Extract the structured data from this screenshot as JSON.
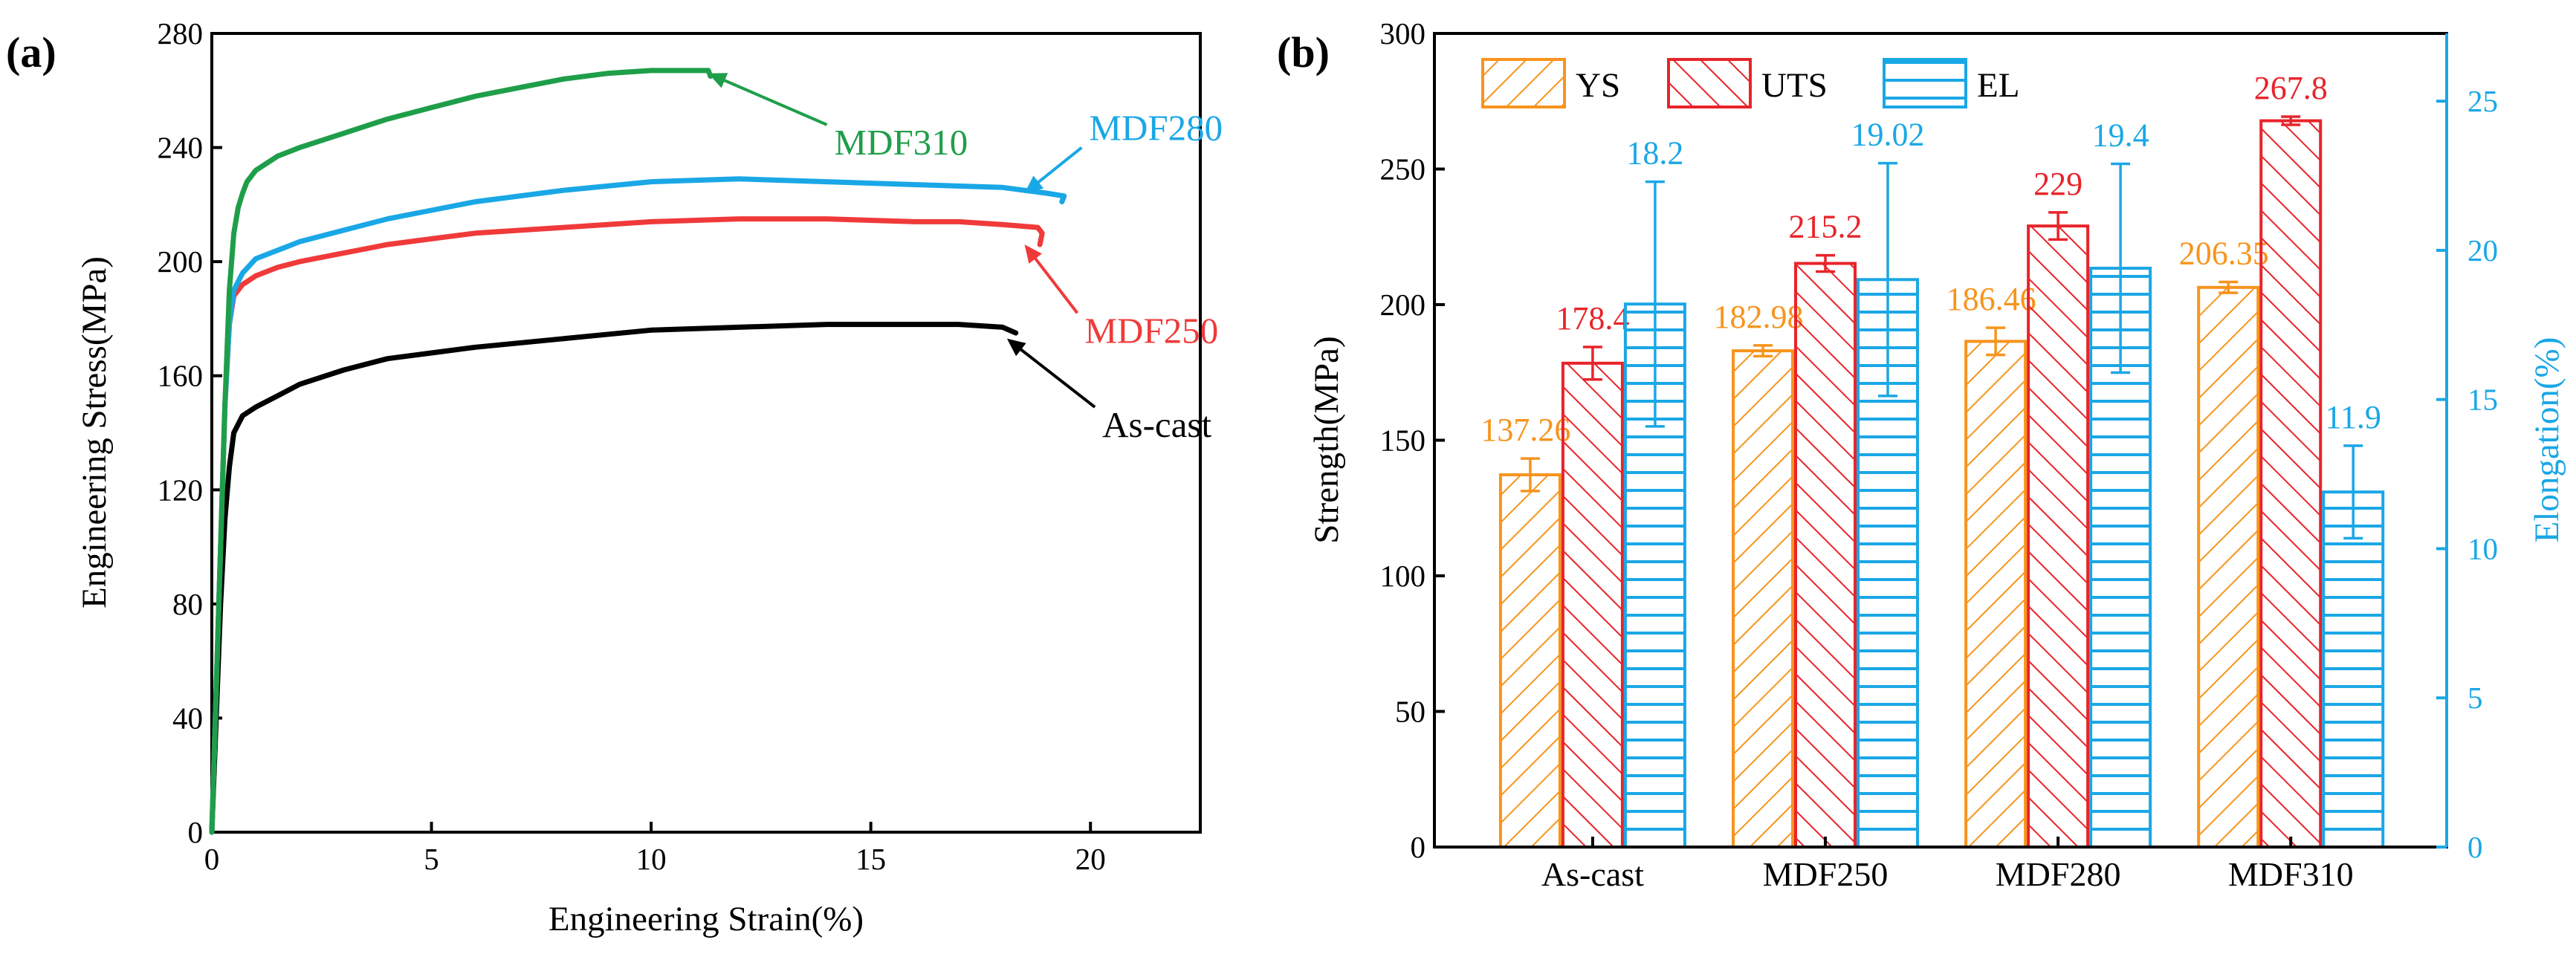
{
  "chart_data": [
    {
      "type": "line",
      "panel_label": "(a)",
      "xlabel": "Engineering Strain(%)",
      "ylabel": "Engineering Stress(MPa)",
      "xlim": [
        0,
        22.5
      ],
      "ylim": [
        0,
        280
      ],
      "xticks": [
        "0",
        "5",
        "10",
        "15",
        "20"
      ],
      "yticks": [
        "0",
        "40",
        "80",
        "120",
        "160",
        "200",
        "240",
        "280"
      ],
      "grid": false,
      "series": [
        {
          "name": "As-cast",
          "color": "#000000",
          "x": [
            0,
            0.1,
            0.2,
            0.3,
            0.4,
            0.5,
            0.7,
            1.0,
            1.5,
            2,
            3,
            4,
            5,
            6,
            8,
            10,
            12,
            14,
            16,
            17,
            18,
            18.3
          ],
          "y": [
            0,
            40,
            80,
            110,
            128,
            140,
            146,
            149,
            153,
            157,
            162,
            166,
            168,
            170,
            173,
            176,
            177,
            178,
            178,
            178,
            177,
            175
          ]
        },
        {
          "name": "MDF250",
          "color": "#f03a3a",
          "x": [
            0,
            0.1,
            0.2,
            0.3,
            0.4,
            0.5,
            0.7,
            1.0,
            1.5,
            2,
            3,
            4,
            5,
            6,
            8,
            10,
            12,
            14,
            16,
            17,
            18,
            18.8,
            18.9,
            18.85
          ],
          "y": [
            0,
            50,
            100,
            150,
            178,
            188,
            192,
            195,
            198,
            200,
            203,
            206,
            208,
            210,
            212,
            214,
            215,
            215,
            214,
            214,
            213,
            212,
            210,
            206
          ]
        },
        {
          "name": "MDF280",
          "color": "#1aa7e6",
          "x": [
            0,
            0.1,
            0.2,
            0.3,
            0.4,
            0.5,
            0.7,
            1.0,
            1.5,
            2,
            3,
            4,
            5,
            6,
            8,
            10,
            12,
            14,
            16,
            18,
            19,
            19.4,
            19.35
          ],
          "y": [
            0,
            50,
            100,
            150,
            178,
            190,
            196,
            201,
            204,
            207,
            211,
            215,
            218,
            221,
            225,
            228,
            229,
            228,
            227,
            226,
            224,
            223,
            221
          ]
        },
        {
          "name": "MDF310",
          "color": "#1f9e4a",
          "x": [
            0,
            0.1,
            0.2,
            0.3,
            0.4,
            0.5,
            0.6,
            0.7,
            0.8,
            1.0,
            1.3,
            1.5,
            2,
            3,
            4,
            5,
            6,
            7,
            8,
            9,
            10,
            10.5,
            11,
            11.3,
            11.35
          ],
          "y": [
            0,
            50,
            100,
            150,
            190,
            210,
            219,
            224,
            228,
            232,
            235,
            237,
            240,
            245,
            250,
            254,
            258,
            261,
            264,
            266,
            267,
            267,
            267,
            267,
            265
          ]
        }
      ],
      "annotations": [
        {
          "text": "MDF310",
          "color": "#1f9e4a",
          "points_to": [
            11.3,
            266
          ],
          "label_at": [
            14,
            248
          ]
        },
        {
          "text": "MDF280",
          "color": "#1aa7e6",
          "points_to": [
            18.5,
            224
          ],
          "label_at": [
            19.8,
            240
          ]
        },
        {
          "text": "MDF250",
          "color": "#f03a3a",
          "points_to": [
            18.5,
            206
          ],
          "label_at": [
            19.7,
            182
          ]
        },
        {
          "text": "As-cast",
          "color": "#000000",
          "points_to": [
            18.1,
            173
          ],
          "label_at": [
            20.1,
            149
          ]
        }
      ]
    },
    {
      "type": "bar",
      "panel_label": "(b)",
      "categories": [
        "As-cast",
        "MDF250",
        "MDF280",
        "MDF310"
      ],
      "ylabel": "Strength(MPa)",
      "y2label": "Elongation(%)",
      "ylim": [
        0,
        300
      ],
      "y2lim": [
        0,
        27.27
      ],
      "yticks": [
        "0",
        "50",
        "100",
        "150",
        "200",
        "250",
        "300"
      ],
      "y2ticks": [
        "0",
        "5",
        "10",
        "15",
        "20",
        "25"
      ],
      "legend_position": "top-left",
      "series": [
        {
          "name": "YS",
          "axis": "left",
          "color": "#f7941d",
          "hatch": "diagonal-up",
          "values": [
            137.26,
            182.98,
            186.46,
            206.35
          ],
          "errors": [
            6,
            2,
            5,
            2
          ],
          "labels": [
            "137.26",
            "182.98",
            "186.46",
            "206.35"
          ]
        },
        {
          "name": "UTS",
          "axis": "left",
          "color": "#e8242a",
          "hatch": "diagonal-down",
          "values": [
            178.4,
            215.2,
            229,
            267.8
          ],
          "errors": [
            6,
            3,
            5,
            1.5
          ],
          "labels": [
            "178.4",
            "215.2",
            "229",
            "267.8"
          ]
        },
        {
          "name": "EL",
          "axis": "right",
          "color": "#1aa7e6",
          "hatch": "horizontal",
          "values": [
            18.2,
            19.02,
            19.4,
            11.9
          ],
          "errors": [
            4.1,
            3.9,
            3.5,
            1.55
          ],
          "labels": [
            "18.2",
            "19.02",
            "19.4",
            "11.9"
          ]
        }
      ]
    }
  ]
}
